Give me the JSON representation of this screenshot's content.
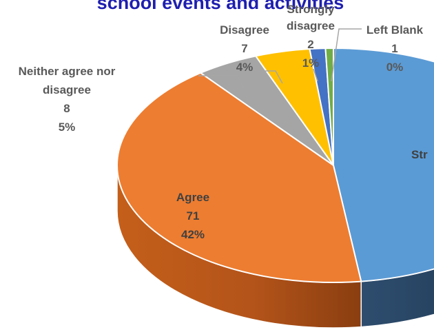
{
  "chart_data": {
    "type": "pie",
    "title": "school events and activities",
    "series": [
      {
        "label": "Strongly agree",
        "display_label": "Str",
        "value": 82,
        "percent": "48%",
        "color": "#5b9bd5"
      },
      {
        "label": "Agree",
        "display_label": "Agree",
        "value": 71,
        "percent": "42%",
        "color": "#ed7d31"
      },
      {
        "label": "Neither agree nor disagree",
        "value": 8,
        "percent": "5%",
        "color": "#a5a5a5"
      },
      {
        "label": "Disagree",
        "value": 7,
        "percent": "4%",
        "color": "#ffc000"
      },
      {
        "label": "Strongly disagree",
        "value": 2,
        "percent": "1%",
        "color": "#4472c4"
      },
      {
        "label": "Left Blank",
        "value": 1,
        "percent": "0%",
        "color": "#70ad47"
      }
    ]
  },
  "labels": {
    "strongly_agree": {
      "name": "Str"
    },
    "agree": {
      "name": "Agree",
      "value": "71",
      "percent": "42%"
    },
    "neither": {
      "name_line1": "Neither agree nor",
      "name_line2": "disagree",
      "value": "8",
      "percent": "5%"
    },
    "disagree": {
      "name": "Disagree",
      "value": "7",
      "percent": "4%"
    },
    "strongly_disagree": {
      "name_line1": "Strongly",
      "name_line2": "disagree",
      "value": "2",
      "percent": "1%"
    },
    "left_blank": {
      "name": "Left  Blank",
      "value": "1",
      "percent": "0%"
    }
  }
}
